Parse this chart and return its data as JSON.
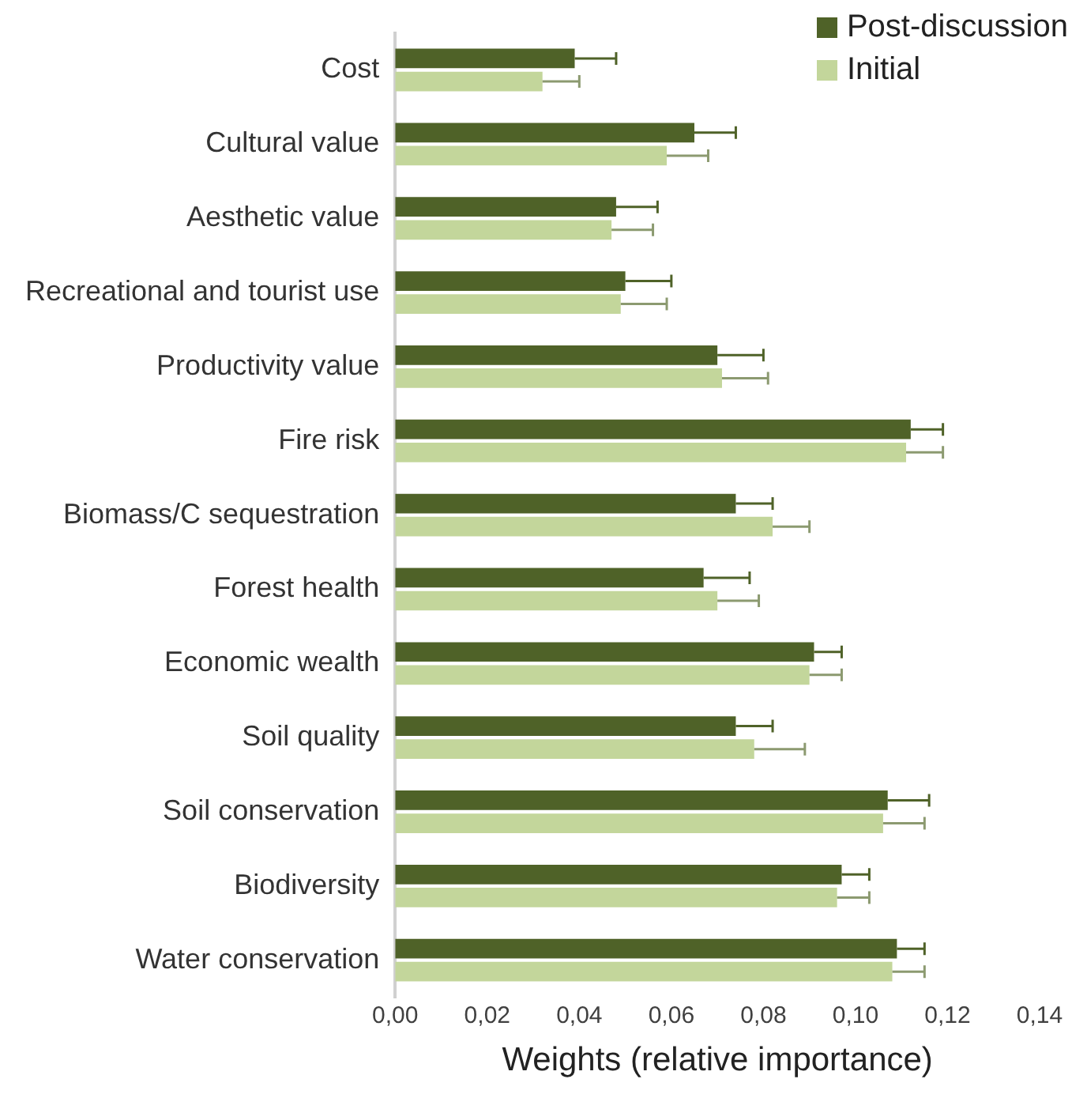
{
  "chart_data": {
    "type": "bar",
    "orientation": "horizontal",
    "xlabel": "Weights (relative importance)",
    "categories": [
      "Cost",
      "Cultural value",
      "Aesthetic value",
      "Recreational and tourist use",
      "Productivity value",
      "Fire risk",
      "Biomass/C sequestration",
      "Forest health",
      "Economic wealth",
      "Soil quality",
      "Soil conservation",
      "Biodiversity",
      "Water conservation"
    ],
    "series": [
      {
        "name": "Post-discussion",
        "color": "#4f6228",
        "values": [
          0.039,
          0.065,
          0.048,
          0.05,
          0.07,
          0.112,
          0.074,
          0.067,
          0.091,
          0.074,
          0.107,
          0.097,
          0.109
        ],
        "errors": [
          [
            0.039,
            0.048
          ],
          [
            0.065,
            0.074
          ],
          [
            0.048,
            0.057
          ],
          [
            0.05,
            0.06
          ],
          [
            0.07,
            0.08
          ],
          [
            0.112,
            0.119
          ],
          [
            0.074,
            0.082
          ],
          [
            0.067,
            0.077
          ],
          [
            0.091,
            0.097
          ],
          [
            0.074,
            0.082
          ],
          [
            0.107,
            0.116
          ],
          [
            0.097,
            0.103
          ],
          [
            0.109,
            0.115
          ]
        ]
      },
      {
        "name": "Initial",
        "color": "#c3d69b",
        "values": [
          0.032,
          0.059,
          0.047,
          0.049,
          0.071,
          0.111,
          0.082,
          0.07,
          0.09,
          0.078,
          0.106,
          0.096,
          0.108
        ],
        "errors": [
          [
            0.032,
            0.04
          ],
          [
            0.059,
            0.068
          ],
          [
            0.047,
            0.056
          ],
          [
            0.049,
            0.059
          ],
          [
            0.071,
            0.081
          ],
          [
            0.111,
            0.119
          ],
          [
            0.082,
            0.09
          ],
          [
            0.07,
            0.079
          ],
          [
            0.09,
            0.097
          ],
          [
            0.078,
            0.089
          ],
          [
            0.106,
            0.115
          ],
          [
            0.096,
            0.103
          ],
          [
            0.108,
            0.115
          ]
        ]
      }
    ],
    "xlim": [
      0,
      0.14
    ],
    "xticks": [
      {
        "value": 0,
        "label": "0,00"
      },
      {
        "value": 0.02,
        "label": "0,02"
      },
      {
        "value": 0.04,
        "label": "0,04"
      },
      {
        "value": 0.06,
        "label": "0,06"
      },
      {
        "value": 0.08,
        "label": "0,08"
      },
      {
        "value": 0.1,
        "label": "0,10"
      },
      {
        "value": 0.12,
        "label": "0,12"
      },
      {
        "value": 0.14,
        "label": "0,14"
      }
    ],
    "grid": false,
    "legend": "top right"
  }
}
